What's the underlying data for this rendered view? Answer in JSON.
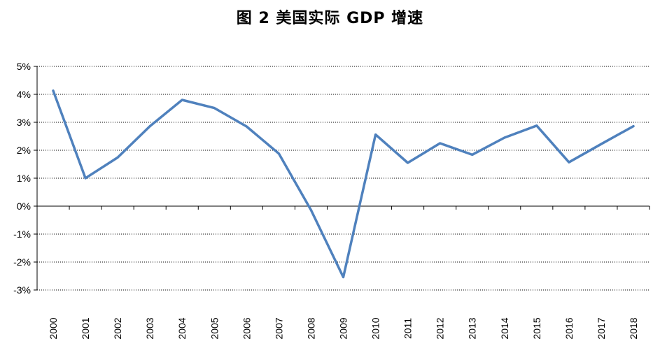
{
  "chart_data": {
    "type": "line",
    "title": "图 2  美国实际 GDP 增速",
    "xlabel": "",
    "ylabel": "",
    "categories": [
      "2000",
      "2001",
      "2002",
      "2003",
      "2004",
      "2005",
      "2006",
      "2007",
      "2008",
      "2009",
      "2010",
      "2011",
      "2012",
      "2013",
      "2014",
      "2015",
      "2016",
      "2017",
      "2018"
    ],
    "series": [
      {
        "values": [
          4.13,
          1.0,
          1.74,
          2.86,
          3.8,
          3.51,
          2.85,
          1.88,
          -0.14,
          -2.54,
          2.56,
          1.55,
          2.25,
          1.84,
          2.45,
          2.88,
          1.57,
          2.22,
          2.86
        ]
      }
    ],
    "ylim": [
      -3,
      5
    ],
    "yticks": [
      "5%",
      "4%",
      "3%",
      "2%",
      "1%",
      "0%",
      "-1%",
      "-2%",
      "-3%"
    ],
    "ytick_values": [
      5,
      4,
      3,
      2,
      1,
      0,
      -1,
      -2,
      -3
    ],
    "grid": "horizontal dotted",
    "line_color": "#4f81bd"
  }
}
